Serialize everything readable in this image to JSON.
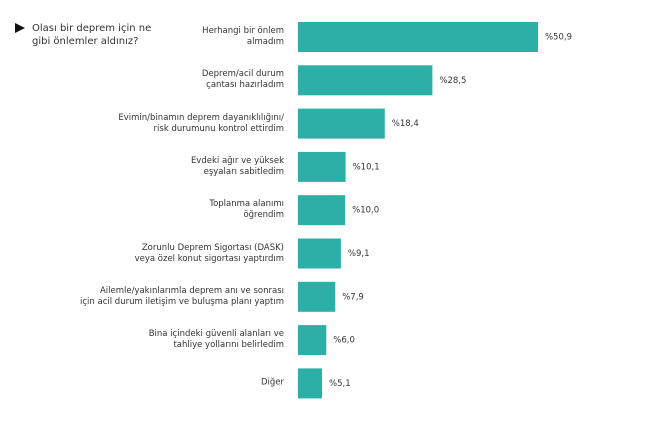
{
  "chart_data": {
    "type": "bar",
    "orientation": "horizontal",
    "title": "Olası bir deprem için ne\ngibi önlemler aldınız?",
    "categories": [
      "Herhangi bir önlem\nalmadım",
      "Deprem/acil durum\nçantası hazırladım",
      "Evimin/binamın deprem dayanıklılığını/\nrisk durumunu kontrol ettirdim",
      "Evdeki ağır ve yüksek\neşyaları sabitledim",
      "Toplanma alanımı\nöğrendim",
      "Zorunlu Deprem  Sigortası (DASK)\nveya özel konut sigortası yaptırdım",
      "Ailemle/yakınlarımla deprem anı ve sonrası\niçin acil durum iletişim ve buluşma planı yaptım",
      "Bina içindeki güvenli alanları ve\ntahliye yollarını belirledim",
      "Diğer"
    ],
    "values": [
      50.9,
      28.5,
      18.4,
      10.1,
      10.0,
      9.1,
      7.9,
      6.0,
      5.1
    ],
    "value_labels": [
      "%50,9",
      "%28,5",
      "%18,4",
      "%10,1",
      "%10,0",
      "%9,1",
      "%7,9",
      "%6,0",
      "%5,1"
    ],
    "color": "#2bafa7"
  }
}
